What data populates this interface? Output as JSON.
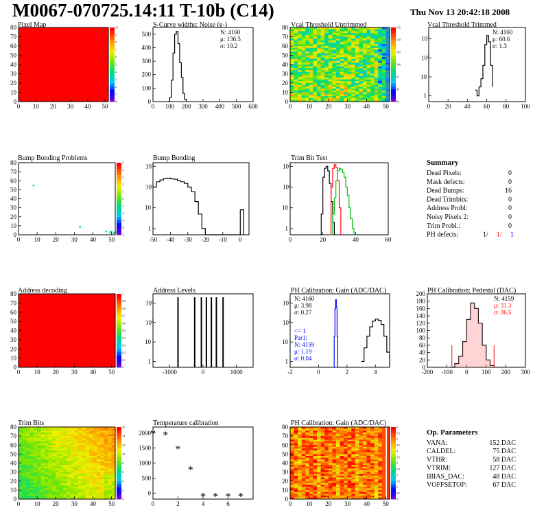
{
  "page": {
    "title": "M0067-070725.14:11 T-10b (C14)",
    "date": "Thu Nov 13 20:42:18 2008"
  },
  "chart_data": [
    {
      "id": "pixel-map",
      "type": "heatmap",
      "title": "Pixel Map",
      "xlim": [
        0,
        52
      ],
      "ylim": [
        0,
        80
      ],
      "xticks": [
        0,
        10,
        20,
        30,
        40,
        50
      ],
      "yticks": [
        0,
        10,
        20,
        30,
        40,
        50,
        60,
        70,
        80
      ],
      "palette_ticks": [
        0,
        1,
        2,
        3,
        4,
        5,
        6,
        7,
        8,
        9,
        10
      ],
      "fill": "uniform",
      "fill_level": 10
    },
    {
      "id": "s-curve-widths",
      "type": "line",
      "title": "S-Curve widths: Noise (e-)",
      "xlim": [
        0,
        600
      ],
      "ylim": [
        0,
        550
      ],
      "yscale": "linear",
      "xticks": [
        0,
        100,
        200,
        300,
        400,
        500,
        600
      ],
      "yticks": [
        0,
        100,
        200,
        300,
        400,
        500
      ],
      "stats": [
        "N: 4160",
        "μ: 136.5",
        "σ: 19.2"
      ],
      "series": [
        {
          "color": "#000000",
          "x": [
            90,
            100,
            110,
            120,
            130,
            140,
            150,
            160,
            170,
            180,
            190,
            200
          ],
          "y": [
            0,
            30,
            160,
            360,
            500,
            520,
            430,
            290,
            180,
            60,
            15,
            0
          ]
        }
      ]
    },
    {
      "id": "vcal-untrimmed",
      "type": "heatmap",
      "title": "Vcal Threshold Untrimmed",
      "xlim": [
        0,
        52
      ],
      "ylim": [
        0,
        80
      ],
      "xticks": [
        0,
        10,
        20,
        30,
        40,
        50
      ],
      "yticks": [
        0,
        10,
        20,
        30,
        40,
        50,
        60,
        70,
        80
      ],
      "palette_ticks": [
        85,
        90,
        95,
        100,
        105,
        110,
        115
      ],
      "fill": "noise"
    },
    {
      "id": "vcal-trimmed",
      "type": "line",
      "title": "Vcal Threshold Trimmed",
      "xlim": [
        0,
        100
      ],
      "ylim": [
        0.5,
        4000
      ],
      "yscale": "log",
      "xticks": [
        0,
        20,
        40,
        60,
        80,
        100
      ],
      "yticks": [
        1,
        10,
        100,
        1000
      ],
      "stats": [
        "N: 4160",
        "μ: 60.6",
        "σ: 1.3"
      ],
      "series": [
        {
          "color": "#000000",
          "x": [
            48,
            50,
            52,
            54,
            56,
            58,
            60,
            62,
            64,
            66
          ],
          "y": [
            2,
            1,
            3,
            8,
            40,
            500,
            1500,
            700,
            40,
            3
          ]
        }
      ]
    },
    {
      "id": "bump-bonding-problems",
      "type": "heatmap",
      "title": "Bump Bonding Problems",
      "xlim": [
        0,
        52
      ],
      "ylim": [
        0,
        80
      ],
      "xticks": [
        0,
        10,
        20,
        30,
        40,
        50
      ],
      "yticks": [
        0,
        10,
        20,
        30,
        40,
        50,
        60,
        70,
        80
      ],
      "palette_ticks": [
        -5,
        -4,
        -3,
        -2,
        -1,
        0,
        1,
        2,
        3,
        4,
        5
      ],
      "fill": "points",
      "points": [
        [
          8,
          55
        ],
        [
          33,
          9
        ],
        [
          47,
          4
        ],
        [
          49,
          3
        ],
        [
          50,
          4
        ],
        [
          51,
          2
        ],
        [
          52,
          3
        ]
      ]
    },
    {
      "id": "bump-bonding",
      "type": "line",
      "title": "Bump Bonding",
      "xlim": [
        -50,
        5
      ],
      "ylim": [
        0.5,
        1500
      ],
      "yscale": "log",
      "xticks": [
        -50,
        -40,
        -30,
        -20,
        -10,
        0
      ],
      "yticks": [
        1,
        10,
        100,
        1000
      ],
      "series": [
        {
          "color": "#000000",
          "x": [
            -50,
            -48,
            -46,
            -44,
            -42,
            -40,
            -38,
            -36,
            -34,
            -32,
            -30,
            -28,
            -26,
            -24,
            -22,
            -20,
            -18,
            -16,
            -14,
            -12,
            -10,
            -8,
            -6,
            -4,
            -2,
            0,
            2
          ],
          "y": [
            100,
            180,
            220,
            260,
            270,
            250,
            240,
            200,
            180,
            150,
            100,
            60,
            20,
            5,
            1,
            0.5,
            0.5,
            0.5,
            0.5,
            0.5,
            0.5,
            0.5,
            0.5,
            0.5,
            0.5,
            8,
            0.5
          ]
        }
      ]
    },
    {
      "id": "trim-bit-test",
      "type": "line",
      "title": "Trim Bit Test",
      "xlim": [
        0,
        60
      ],
      "ylim": [
        0.5,
        1500
      ],
      "yscale": "log",
      "xticks": [
        0,
        20,
        40,
        60
      ],
      "yticks": [
        1,
        10,
        100,
        1000
      ],
      "series": [
        {
          "color": "#000000",
          "x": [
            18,
            19,
            20,
            21,
            22,
            23,
            24,
            25,
            26,
            27
          ],
          "y": [
            0.5,
            5,
            300,
            800,
            1000,
            600,
            150,
            20,
            2,
            0.5
          ]
        },
        {
          "color": "#ff0000",
          "x": [
            24,
            25,
            26,
            27,
            28,
            29,
            30,
            31
          ],
          "y": [
            0.5,
            100,
            800,
            1200,
            900,
            200,
            10,
            0.5
          ]
        },
        {
          "color": "#00c000",
          "x": [
            25,
            26,
            27,
            28,
            29,
            30,
            31,
            32,
            33,
            34,
            35,
            36,
            37,
            38,
            39
          ],
          "y": [
            0.5,
            5,
            30,
            200,
            600,
            800,
            700,
            500,
            300,
            100,
            40,
            10,
            3,
            1,
            0.5
          ]
        }
      ]
    },
    {
      "id": "address-decoding",
      "type": "heatmap",
      "title": "Address decoding",
      "xlim": [
        0,
        52
      ],
      "ylim": [
        0,
        80
      ],
      "xticks": [
        0,
        10,
        20,
        30,
        40,
        50
      ],
      "yticks": [
        0,
        10,
        20,
        30,
        40,
        50,
        60,
        70,
        80
      ],
      "palette_ticks": [
        0,
        0.1,
        0.2,
        0.3,
        0.4,
        0.5,
        0.6,
        0.7,
        0.8,
        0.9,
        1
      ],
      "fill": "uniform",
      "fill_level": 1
    },
    {
      "id": "address-levels",
      "type": "line",
      "title": "Address Levels",
      "xlim": [
        -1500,
        1500
      ],
      "ylim": [
        0.5,
        3000
      ],
      "yscale": "log",
      "xticks": [
        -1000,
        0,
        1000
      ],
      "yticks": [
        1,
        10,
        100,
        1000
      ],
      "spikes": [
        -750,
        -250,
        -50,
        100,
        250,
        400,
        600
      ],
      "spike_height": 2000
    },
    {
      "id": "ph-gain",
      "type": "line",
      "title": "PH Calibration: Gain (ADC/DAC)",
      "xlim": [
        -2,
        5
      ],
      "ylim": [
        0.5,
        3000
      ],
      "yscale": "log",
      "xticks": [
        -2,
        0,
        2,
        4
      ],
      "yticks": [
        1,
        10,
        100,
        1000
      ],
      "stats": [
        "N: 4160",
        "μ: 3.98",
        "σ: 0.27"
      ],
      "stats2": [
        "<= 1",
        "Par1:",
        "N: 4159",
        "μ: 1.19",
        "σ: 0.04"
      ],
      "series": [
        {
          "color": "#0000ff",
          "x": [
            1.05,
            1.1,
            1.15,
            1.2,
            1.25,
            1.3,
            1.35
          ],
          "y": [
            0.5,
            20,
            500,
            1500,
            600,
            20,
            0.5
          ]
        },
        {
          "color": "#000000",
          "x": [
            3.0,
            3.2,
            3.4,
            3.6,
            3.8,
            4.0,
            4.2,
            4.4,
            4.6,
            4.8,
            5.0
          ],
          "y": [
            1,
            5,
            20,
            60,
            120,
            150,
            130,
            80,
            20,
            3,
            0.5
          ]
        }
      ]
    },
    {
      "id": "ph-pedestal",
      "type": "line",
      "title": "PH Calibration: Pedestal (DAC)",
      "xlim": [
        -200,
        300
      ],
      "ylim": [
        0,
        200
      ],
      "yscale": "linear",
      "xticks": [
        -200,
        -100,
        0,
        100,
        200,
        300
      ],
      "yticks": [
        0,
        20,
        40,
        60,
        80,
        100,
        120,
        140,
        160,
        180,
        200
      ],
      "stats": [
        "N: 4159",
        "μ: 31.3",
        "σ: 36.5"
      ],
      "series": [
        {
          "color": "#000000",
          "x": [
            -80,
            -60,
            -40,
            -20,
            0,
            20,
            40,
            60,
            80,
            100,
            120,
            140
          ],
          "y": [
            0,
            10,
            30,
            70,
            130,
            175,
            160,
            120,
            60,
            20,
            5,
            0
          ]
        }
      ]
    },
    {
      "id": "trim-bits",
      "type": "heatmap",
      "title": "Trim Bits",
      "xlim": [
        0,
        52
      ],
      "ylim": [
        0,
        80
      ],
      "xticks": [
        0,
        10,
        20,
        30,
        40,
        50
      ],
      "yticks": [
        0,
        10,
        20,
        30,
        40,
        50,
        60,
        70,
        80
      ],
      "palette_ticks": [
        0,
        2,
        4,
        6,
        8,
        10,
        12,
        14,
        16
      ],
      "fill": "gradient"
    },
    {
      "id": "temperature-calibration",
      "type": "scatter",
      "title": "Temperature calibration",
      "xlim": [
        0,
        8
      ],
      "ylim": [
        -200,
        2200
      ],
      "xticks": [
        0,
        2,
        4,
        6
      ],
      "yticks": [
        0,
        500,
        1000,
        1500,
        2000
      ],
      "x": [
        0,
        1,
        2,
        3,
        4,
        5,
        6,
        7
      ],
      "y": [
        2000,
        1950,
        1480,
        790,
        -100,
        -100,
        -100,
        -100
      ]
    },
    {
      "id": "ph-gain-map",
      "type": "heatmap",
      "title": "PH Calibration: Gain (ADC/DAC)",
      "xlim": [
        0,
        52
      ],
      "ylim": [
        0,
        80
      ],
      "xticks": [
        0,
        10,
        20,
        30,
        40,
        50
      ],
      "yticks": [
        0,
        10,
        20,
        30,
        40,
        50,
        60,
        70,
        80
      ],
      "palette_ticks": [
        0,
        0.5,
        1,
        1.5,
        2,
        2.5,
        3,
        3.5,
        4,
        4.5,
        5,
        5.5,
        6
      ],
      "fill": "columns"
    }
  ],
  "summary": {
    "title": "Summary",
    "rows": [
      {
        "label": "Dead Pixels:",
        "value": "0"
      },
      {
        "label": "Mask defects:",
        "value": "0"
      },
      {
        "label": "Dead Bumps:",
        "value": "16"
      },
      {
        "label": "Dead Trimbits:",
        "value": "0"
      },
      {
        "label": "Address Probl:",
        "value": "0"
      },
      {
        "label": "Noisy Pixels 2:",
        "value": "0"
      },
      {
        "label": "Trim Probl.:",
        "value": "0"
      }
    ],
    "ph_label": "PH defects:",
    "ph_values": [
      {
        "text": "1/",
        "color": "#000000"
      },
      {
        "text": "1/",
        "color": "#ff0000"
      },
      {
        "text": "1",
        "color": "#0000ff"
      }
    ]
  },
  "op_params": {
    "title": "Op. Parameters",
    "rows": [
      {
        "label": "VANA:",
        "value": "152 DAC"
      },
      {
        "label": "CALDEL:",
        "value": "75 DAC"
      },
      {
        "label": "VTHR:",
        "value": "58 DAC"
      },
      {
        "label": "VTRIM:",
        "value": "127 DAC"
      },
      {
        "label": "IBIAS_DAC:",
        "value": "48 DAC"
      },
      {
        "label": "VOFFSETOP:",
        "value": "67 DAC"
      }
    ]
  }
}
